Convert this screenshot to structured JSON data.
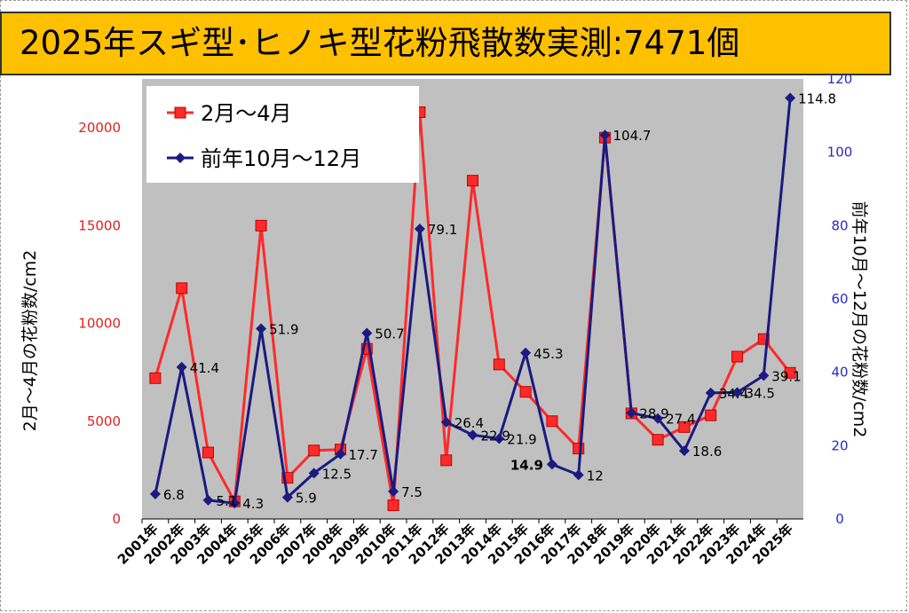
{
  "title": "2025年スギ型･ヒノキ型花粉飛散数実測:7471個",
  "chart_data": {
    "type": "line",
    "categories": [
      "2001年",
      "2002年",
      "2003年",
      "2004年",
      "2005年",
      "2006年",
      "2007年",
      "2008年",
      "2009年",
      "2010年",
      "2011年",
      "2012年",
      "2013年",
      "2014年",
      "2015年",
      "2016年",
      "2017年",
      "2018年",
      "2019年",
      "2020年",
      "2021年",
      "2022年",
      "2023年",
      "2024年",
      "2025年"
    ],
    "ylabel_left": "2月～4月の花粉数/cm2",
    "ylabel_right": "前年10月～12月の花粉数/cm2",
    "ylim_left": [
      0,
      22500
    ],
    "yticks_left": [
      0,
      5000,
      10000,
      15000,
      20000
    ],
    "ylim_right": [
      0,
      120
    ],
    "yticks_right": [
      0,
      20,
      40,
      60,
      80,
      100,
      120
    ],
    "grid": false,
    "legend_position": "top-left",
    "series": [
      {
        "name": "2月～4月",
        "axis": "left",
        "color": "#ff2a2a",
        "marker": "square",
        "values": [
          7200,
          11800,
          3400,
          900,
          15000,
          2100,
          3500,
          3550,
          8700,
          700,
          20800,
          3000,
          17300,
          7900,
          6500,
          5000,
          3600,
          19500,
          5400,
          4050,
          4700,
          5300,
          8300,
          9200,
          7471
        ]
      },
      {
        "name": "前年10月～12月",
        "axis": "right",
        "color": "#1a1a80",
        "marker": "diamond",
        "values": [
          6.8,
          41.4,
          5.1,
          4.3,
          51.9,
          5.9,
          12.5,
          17.7,
          50.7,
          7.5,
          79.1,
          26.4,
          22.9,
          21.9,
          45.3,
          14.9,
          12,
          104.7,
          28.9,
          27.4,
          18.6,
          34.4,
          34.5,
          39.1,
          114.8
        ],
        "data_labels": [
          "6.8",
          "41.4",
          "5.1",
          "4.3",
          "51.9",
          "5.9",
          "12.5",
          "17.7",
          "50.7",
          "7.5",
          "79.1",
          "26.4",
          "22.9",
          "21.9",
          "45.3",
          "14.9",
          "12",
          "104.7",
          "28.9",
          "27.4",
          "18.6",
          "34.4",
          "34.5",
          "39.1",
          "114.8"
        ]
      }
    ]
  }
}
